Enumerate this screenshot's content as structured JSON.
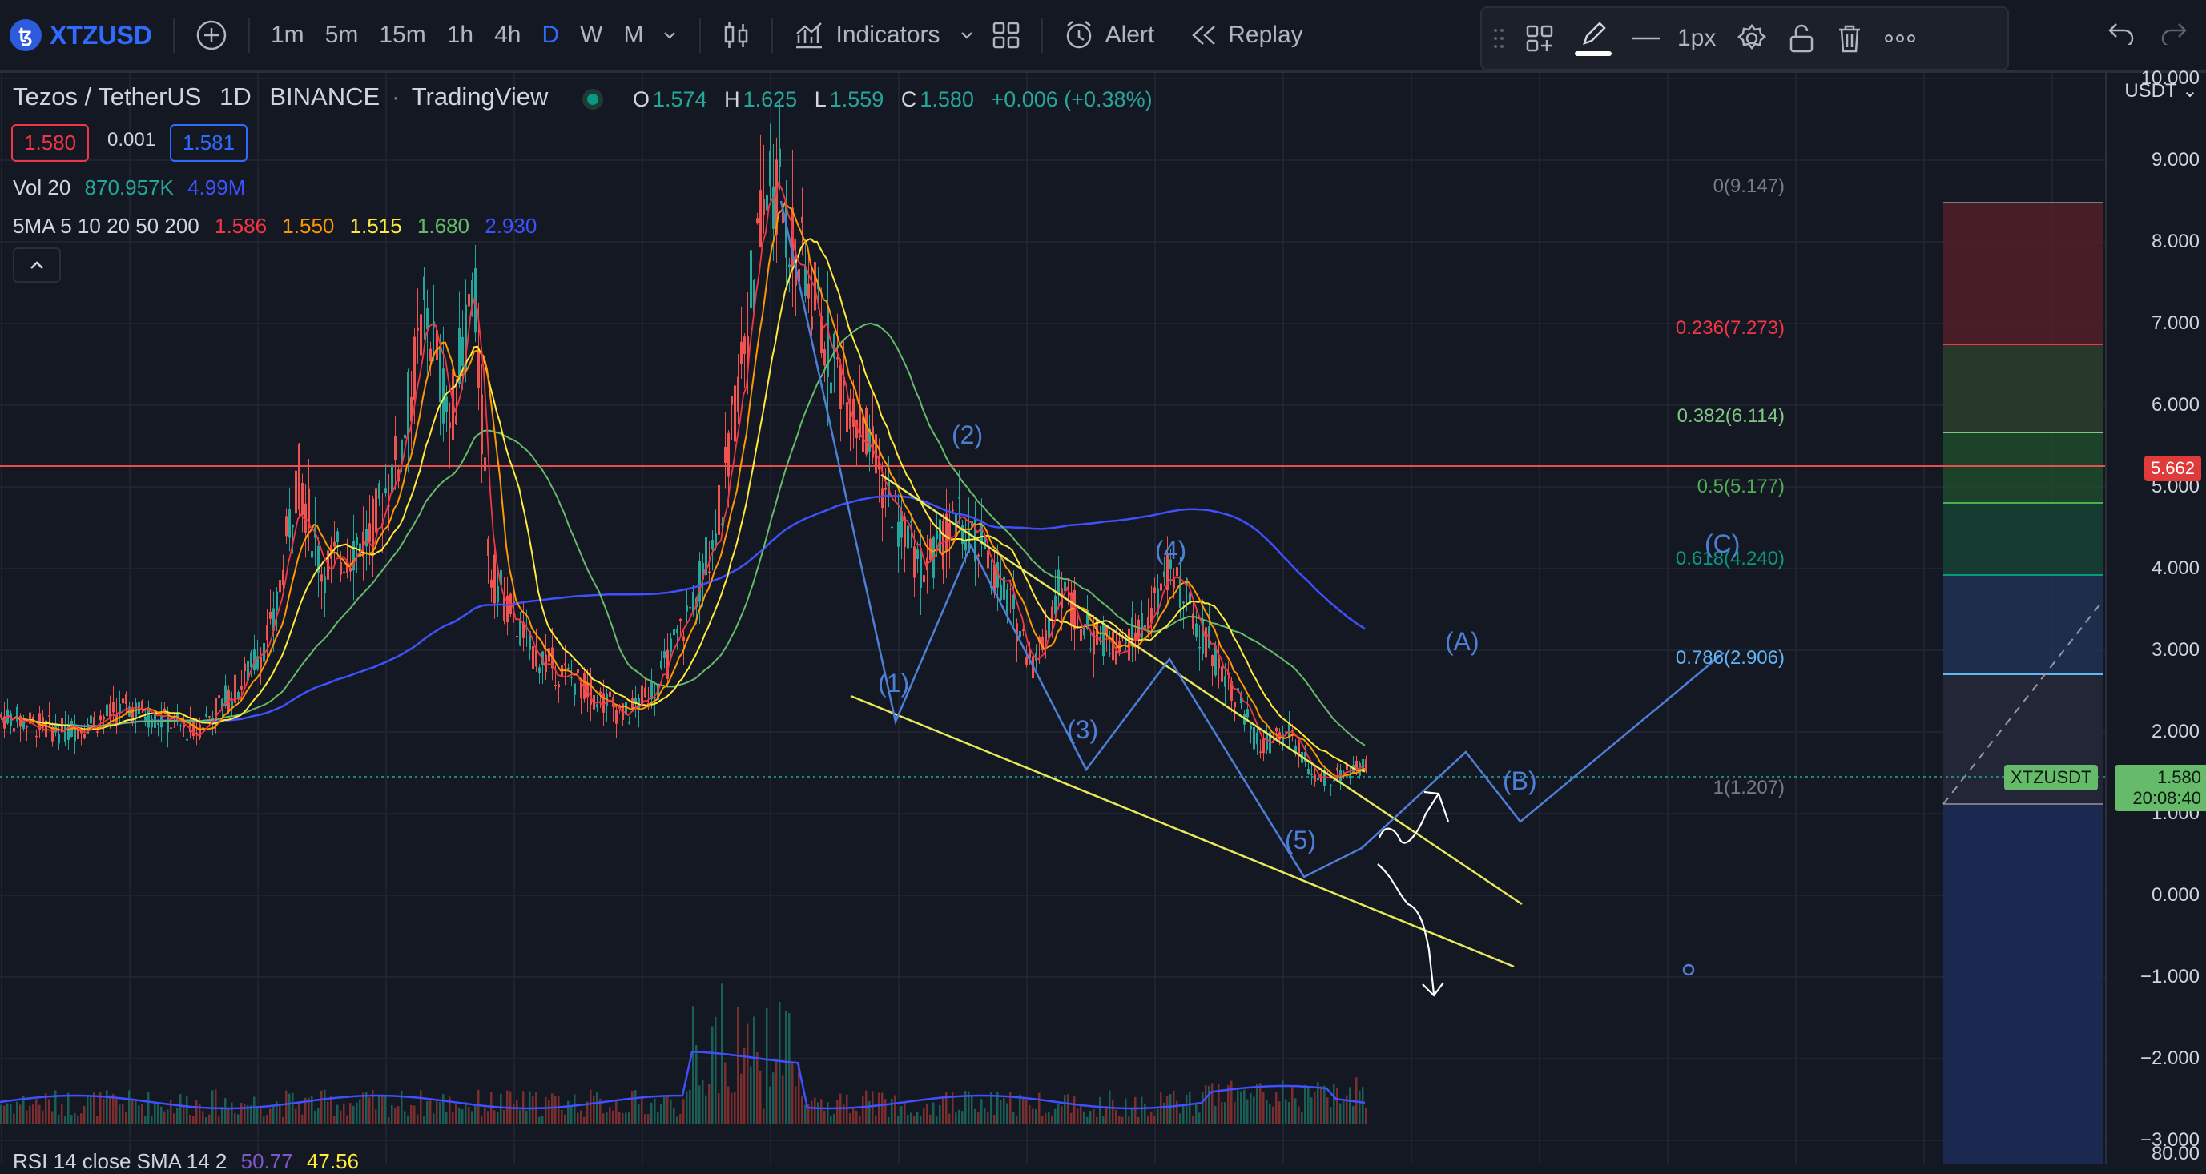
{
  "toolbar": {
    "symbol": "XTZUSD",
    "timeframes": [
      "1m",
      "5m",
      "15m",
      "1h",
      "4h",
      "D",
      "W",
      "M"
    ],
    "active_timeframe": "D",
    "indicators_label": "Indicators",
    "alert_label": "Alert",
    "replay_label": "Replay"
  },
  "drawing_toolbar": {
    "line_width_label": "1px"
  },
  "legend": {
    "title": "Tezos / TetherUS",
    "interval": "1D",
    "exchange": "BINANCE",
    "source": "TradingView",
    "open_label": "O",
    "open": "1.574",
    "high_label": "H",
    "high": "1.625",
    "low_label": "L",
    "low": "1.559",
    "close_label": "C",
    "close": "1.580",
    "change": "+0.006 (+0.38%)",
    "sell_price": "1.580",
    "spread": "0.001",
    "buy_price": "1.581",
    "volume_label": "Vol 20",
    "volume_value": "870.957K",
    "volume_ma": "4.99M",
    "ma_label": "5MA 5 10 20 50 200",
    "ma_values": [
      "1.586",
      "1.550",
      "1.515",
      "1.680",
      "2.930"
    ],
    "rsi_label": "RSI 14 close SMA 14 2",
    "rsi_values": [
      "50.77",
      "47.56"
    ]
  },
  "price_axis": {
    "currency": "USDT",
    "ticks": [
      "10.000",
      "9.000",
      "8.000",
      "7.000",
      "6.000",
      "5.000",
      "4.000",
      "3.000",
      "2.000",
      "1.000",
      "0.000",
      "−1.000",
      "−2.000",
      "−3.000"
    ],
    "rsi_tick": "80.00",
    "horizontal_line_value": "5.662",
    "symbol_tag": "XTZUSDT",
    "last_price": "1.580",
    "countdown": "20:08:40"
  },
  "fib_levels": [
    {
      "label": "0(9.147)",
      "color": "#787b86"
    },
    {
      "label": "0.236(7.273)",
      "color": "#f23645"
    },
    {
      "label": "0.382(6.114)",
      "color": "#81c784"
    },
    {
      "label": "0.5(5.177)",
      "color": "#4caf50"
    },
    {
      "label": "0.618(4.240)",
      "color": "#089981"
    },
    {
      "label": "0.786(2.906)",
      "color": "#64b5f6"
    },
    {
      "label": "1(1.207)",
      "color": "#787b86"
    }
  ],
  "wave_labels": [
    "(1)",
    "(2)",
    "(3)",
    "(4)",
    "(5)",
    "(A)",
    "(B)",
    "(C)"
  ],
  "colors": {
    "background": "#141822",
    "accent": "#2f6bff",
    "up": "#26a69a",
    "down": "#ef5350",
    "ma5": "#f23645",
    "ma10": "#ff9800",
    "ma20": "#ffeb3b",
    "ma50": "#66bb6a",
    "ma200": "#3f51ff",
    "wedge": "#e8e85a",
    "wave": "#4e7fd6",
    "resistance": "#e84e4e"
  }
}
